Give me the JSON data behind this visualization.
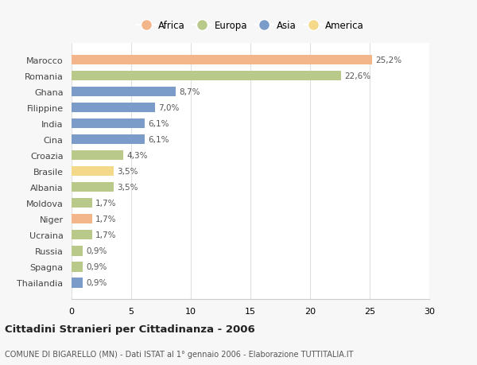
{
  "categories": [
    "Marocco",
    "Romania",
    "Ghana",
    "Filippine",
    "India",
    "Cina",
    "Croazia",
    "Brasile",
    "Albania",
    "Moldova",
    "Niger",
    "Ucraina",
    "Russia",
    "Spagna",
    "Thailandia"
  ],
  "values": [
    25.2,
    22.6,
    8.7,
    7.0,
    6.1,
    6.1,
    4.3,
    3.5,
    3.5,
    1.7,
    1.7,
    1.7,
    0.9,
    0.9,
    0.9
  ],
  "labels": [
    "25,2%",
    "22,6%",
    "8,7%",
    "7,0%",
    "6,1%",
    "6,1%",
    "4,3%",
    "3,5%",
    "3,5%",
    "1,7%",
    "1,7%",
    "1,7%",
    "0,9%",
    "0,9%",
    "0,9%"
  ],
  "colors": [
    "#F2B68A",
    "#B8C98A",
    "#7B9CC9",
    "#7B9CC9",
    "#7B9CC9",
    "#7B9CC9",
    "#B8C98A",
    "#F5D98A",
    "#B8C98A",
    "#B8C98A",
    "#F2B68A",
    "#B8C98A",
    "#B8C98A",
    "#B8C98A",
    "#7B9CC9"
  ],
  "legend_labels": [
    "Africa",
    "Europa",
    "Asia",
    "America"
  ],
  "legend_colors": [
    "#F2B68A",
    "#B8C98A",
    "#7B9CC9",
    "#F5D98A"
  ],
  "title": "Cittadini Stranieri per Cittadinanza - 2006",
  "subtitle": "COMUNE DI BIGARELLO (MN) - Dati ISTAT al 1° gennaio 2006 - Elaborazione TUTTITALIA.IT",
  "xlim": [
    0,
    30
  ],
  "xticks": [
    0,
    5,
    10,
    15,
    20,
    25,
    30
  ],
  "background_color": "#f7f7f7",
  "plot_bg_color": "#ffffff",
  "grid_color": "#e0e0e0"
}
